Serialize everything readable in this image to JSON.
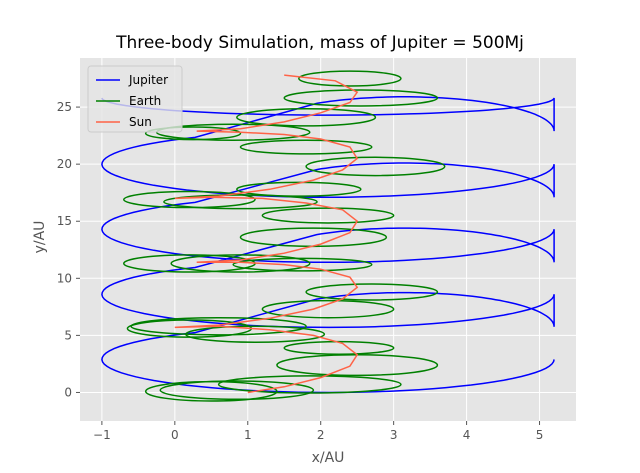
{
  "chart_data": {
    "type": "line",
    "title": "Three-body Simulation, mass of Jupiter = 500Mj",
    "xlabel": "x/AU",
    "ylabel": "y/AU",
    "xlim": [
      -1.3,
      5.5
    ],
    "ylim": [
      -2.5,
      29.3
    ],
    "xticks": [
      -1,
      0,
      1,
      2,
      3,
      4,
      5
    ],
    "yticks": [
      0,
      5,
      10,
      15,
      20,
      25
    ],
    "grid": true,
    "legend_position": "top-left",
    "series": [
      {
        "name": "Jupiter",
        "color": "#0000ff",
        "model": "loops",
        "loops": [
          {
            "cx": 2.1,
            "cy": 2.9,
            "rx": 3.1,
            "ry": 2.9,
            "t0": 0,
            "t1": 0.65
          },
          {
            "cx": 3.15,
            "cy": 5.75,
            "rx": 2.05,
            "ry": 3.0,
            "t0": 0.65,
            "t1": 1.0
          },
          {
            "cx": 2.1,
            "cy": 8.6,
            "rx": 3.1,
            "ry": 2.9,
            "t0": 0,
            "t1": 0.65
          },
          {
            "cx": 3.15,
            "cy": 11.4,
            "rx": 2.05,
            "ry": 3.0,
            "t0": 0.65,
            "t1": 1.0
          },
          {
            "cx": 2.1,
            "cy": 14.3,
            "rx": 3.1,
            "ry": 2.9,
            "t0": 0,
            "t1": 0.65
          },
          {
            "cx": 3.15,
            "cy": 17.1,
            "rx": 2.05,
            "ry": 3.0,
            "t0": 0.65,
            "t1": 1.0
          },
          {
            "cx": 2.1,
            "cy": 20.0,
            "rx": 3.1,
            "ry": 2.9,
            "t0": 0,
            "t1": 0.65
          },
          {
            "cx": 3.15,
            "cy": 22.9,
            "rx": 2.05,
            "ry": 3.0,
            "t0": 0.65,
            "t1": 1.0
          },
          {
            "cx": 2.1,
            "cy": 25.8,
            "rx": 3.1,
            "ry": 1.5,
            "t0": 0,
            "t1": 0.5
          }
        ]
      },
      {
        "name": "Earth",
        "color": "#008000",
        "model": "ellipses",
        "ellipses": [
          {
            "cx": 0.5,
            "cy": 0.1,
            "rx": 0.9,
            "ry": 0.85
          },
          {
            "cx": 1.85,
            "cy": 0.7,
            "rx": 1.25,
            "ry": 0.75
          },
          {
            "cx": 0.85,
            "cy": 0.2,
            "rx": 1.05,
            "ry": 0.8
          },
          {
            "cx": 2.5,
            "cy": 2.4,
            "rx": 1.1,
            "ry": 0.9
          },
          {
            "cx": 2.25,
            "cy": 3.9,
            "rx": 0.75,
            "ry": 0.55
          },
          {
            "cx": 1.1,
            "cy": 5.1,
            "rx": 0.95,
            "ry": 0.7
          },
          {
            "cx": 0.2,
            "cy": 5.6,
            "rx": 0.85,
            "ry": 0.75
          },
          {
            "cx": 0.6,
            "cy": 5.8,
            "rx": 1.2,
            "ry": 0.75
          },
          {
            "cx": 2.1,
            "cy": 7.3,
            "rx": 0.9,
            "ry": 0.75
          },
          {
            "cx": 2.7,
            "cy": 8.8,
            "rx": 0.9,
            "ry": 0.7
          },
          {
            "cx": 0.2,
            "cy": 11.3,
            "rx": 0.9,
            "ry": 0.75
          },
          {
            "cx": 0.9,
            "cy": 11.3,
            "rx": 0.95,
            "ry": 0.75
          },
          {
            "cx": 1.75,
            "cy": 11.2,
            "rx": 0.95,
            "ry": 0.55
          },
          {
            "cx": 1.9,
            "cy": 13.6,
            "rx": 1.0,
            "ry": 0.8
          },
          {
            "cx": 2.1,
            "cy": 15.5,
            "rx": 0.9,
            "ry": 0.65
          },
          {
            "cx": 0.9,
            "cy": 16.7,
            "rx": 1.05,
            "ry": 0.6
          },
          {
            "cx": 0.2,
            "cy": 16.9,
            "rx": 0.9,
            "ry": 0.7
          },
          {
            "cx": 1.7,
            "cy": 17.8,
            "rx": 0.85,
            "ry": 0.6
          },
          {
            "cx": 2.75,
            "cy": 19.8,
            "rx": 0.95,
            "ry": 0.8
          },
          {
            "cx": 1.8,
            "cy": 21.5,
            "rx": 0.9,
            "ry": 0.6
          },
          {
            "cx": 0.25,
            "cy": 22.7,
            "rx": 0.65,
            "ry": 0.55
          },
          {
            "cx": 0.8,
            "cy": 22.8,
            "rx": 1.05,
            "ry": 0.7
          },
          {
            "cx": 1.8,
            "cy": 24.1,
            "rx": 0.95,
            "ry": 0.75
          },
          {
            "cx": 2.55,
            "cy": 25.8,
            "rx": 1.05,
            "ry": 0.7
          },
          {
            "cx": 2.4,
            "cy": 27.5,
            "rx": 0.7,
            "ry": 0.65
          }
        ]
      },
      {
        "name": "Sun",
        "color": "#ff6347",
        "model": "polyline",
        "x": [
          1.0,
          1.5,
          2.0,
          2.4,
          2.5,
          2.3,
          1.9,
          1.3,
          0.6,
          0.0,
          0.6,
          1.3,
          1.9,
          2.3,
          2.5,
          2.4,
          2.0,
          1.5,
          0.9,
          0.3,
          0.9,
          1.5,
          2.0,
          2.4,
          2.5,
          2.3,
          1.8,
          1.2,
          0.5,
          0.0,
          0.6,
          1.3,
          1.9,
          2.3,
          2.5,
          2.4,
          2.0,
          1.5,
          0.9,
          0.3,
          0.9,
          1.5,
          2.0,
          2.4,
          2.5,
          2.2,
          1.5
        ],
        "y": [
          0.0,
          0.5,
          1.3,
          2.3,
          3.3,
          4.3,
          5.0,
          5.5,
          5.8,
          5.7,
          5.9,
          6.5,
          7.3,
          8.2,
          9.2,
          10.1,
          10.8,
          11.2,
          11.4,
          11.4,
          11.6,
          12.2,
          13.0,
          14.0,
          15.0,
          16.0,
          16.6,
          17.0,
          17.1,
          17.0,
          17.2,
          17.8,
          18.6,
          19.5,
          20.5,
          21.5,
          22.2,
          22.6,
          22.8,
          22.9,
          23.1,
          23.7,
          24.5,
          25.4,
          26.3,
          27.3,
          27.8
        ]
      }
    ]
  }
}
